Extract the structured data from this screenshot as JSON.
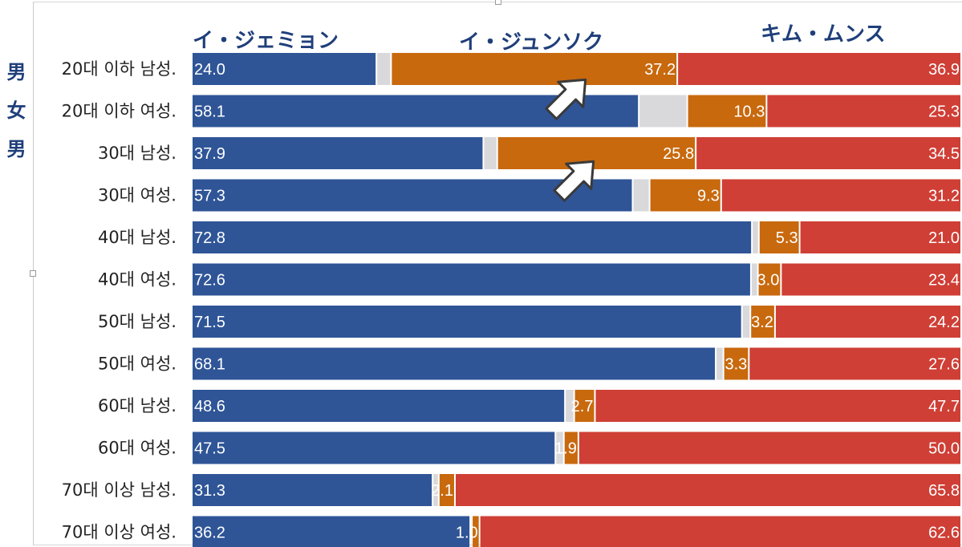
{
  "side_label": [
    "男",
    "女",
    "男"
  ],
  "chart_data": {
    "type": "bar",
    "stacked": true,
    "orientation": "horizontal",
    "colors": {
      "lee_jaemyung": "#2f5597",
      "gap": "#d9d9dc",
      "lee_junseok": "#c8690e",
      "kim_moonsoo": "#cf3f36"
    },
    "legend": [
      {
        "key": "lee_jaemyung",
        "label": "イ・ジェミョン"
      },
      {
        "key": "lee_junseok",
        "label": "イ・ジュンソク"
      },
      {
        "key": "kim_moonsoo",
        "label": "キム・ムンス"
      }
    ],
    "categories": [
      "20대 이하 남성.",
      "20대 이하 여성.",
      "30대 남성.",
      "30대 여성.",
      "40대 남성.",
      "40대 여성.",
      "50대 남성.",
      "50대 여성.",
      "60대 남성.",
      "60대 여성.",
      "70대 이상 남성.",
      "70대 이상 여성."
    ],
    "series": [
      {
        "key": "lee_jaemyung",
        "labels": [
          "24.0",
          "58.1",
          "37.9",
          "57.3",
          "72.8",
          "72.6",
          "71.5",
          "68.1",
          "48.6",
          "47.5",
          "31.3",
          "36.2"
        ],
        "values": [
          24.0,
          58.1,
          37.9,
          57.3,
          72.8,
          72.6,
          71.5,
          68.1,
          48.6,
          47.5,
          31.3,
          36.2
        ]
      },
      {
        "key": "gap",
        "values": [
          1.9,
          6.3,
          1.8,
          2.2,
          0.9,
          0.9,
          1.1,
          1.0,
          1.2,
          1.1,
          0.8,
          0.2
        ]
      },
      {
        "key": "lee_junseok",
        "labels": [
          "37.2",
          "10.3",
          "25.8",
          "9.3",
          "5.3",
          "3.0",
          "3.2",
          "3.3",
          "2.7",
          "1.9",
          "2.1",
          "1.0"
        ],
        "values": [
          37.2,
          10.3,
          25.8,
          9.3,
          5.3,
          3.0,
          3.2,
          3.3,
          2.7,
          1.9,
          2.1,
          1.0
        ]
      },
      {
        "key": "kim_moonsoo",
        "labels": [
          "36.9",
          "25.3",
          "34.5",
          "31.2",
          "21.0",
          "23.4",
          "24.2",
          "27.6",
          "47.7",
          "50.0",
          "65.8",
          "62.6"
        ],
        "values": [
          36.9,
          25.3,
          34.5,
          31.2,
          21.0,
          23.4,
          24.2,
          27.6,
          47.7,
          50.0,
          65.8,
          62.6
        ]
      }
    ],
    "arrows_on_categories": [
      "20대 이하 남성.",
      "30대 남성."
    ]
  }
}
